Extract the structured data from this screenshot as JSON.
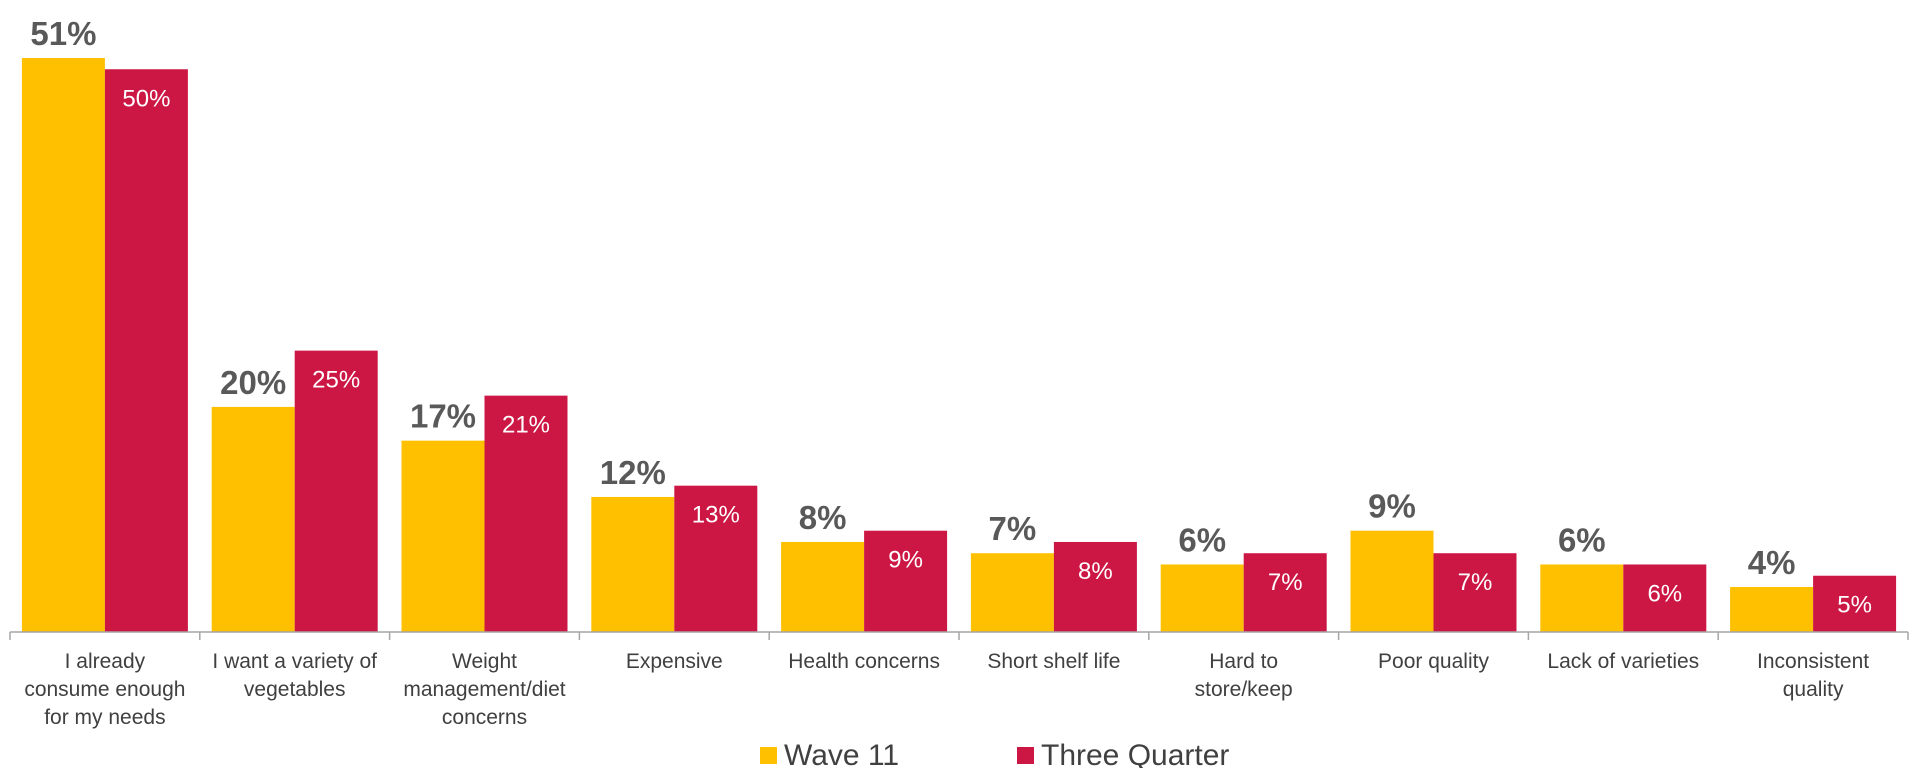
{
  "chart_data": {
    "type": "bar",
    "categories": [
      [
        "I already",
        "consume enough",
        "for my needs"
      ],
      [
        "I want a variety of",
        "vegetables"
      ],
      [
        "Weight",
        "management/diet",
        "concerns"
      ],
      [
        "Expensive"
      ],
      [
        "Health concerns"
      ],
      [
        "Short shelf life"
      ],
      [
        "Hard to",
        "store/keep"
      ],
      [
        "Poor quality"
      ],
      [
        "Lack of varieties"
      ],
      [
        "Inconsistent",
        "quality"
      ]
    ],
    "series": [
      {
        "name": "Wave 11",
        "color": "#FFC000",
        "values": [
          51,
          20,
          17,
          12,
          8,
          7,
          6,
          9,
          6,
          4
        ],
        "labels": [
          "51%",
          "20%",
          "17%",
          "12%",
          "8%",
          "7%",
          "6%",
          "9%",
          "6%",
          "4%"
        ]
      },
      {
        "name": "Three Quarter",
        "color": "#CC1745",
        "values": [
          50,
          25,
          21,
          13,
          9,
          8,
          7,
          7,
          6,
          5
        ],
        "labels": [
          "50%",
          "25%",
          "21%",
          "13%",
          "9%",
          "8%",
          "7%",
          "7%",
          "6%",
          "5%"
        ]
      }
    ],
    "ylim": [
      0,
      51
    ],
    "grid": false,
    "legend_position": "bottom-center",
    "axis_color": "#A6A6A6"
  }
}
